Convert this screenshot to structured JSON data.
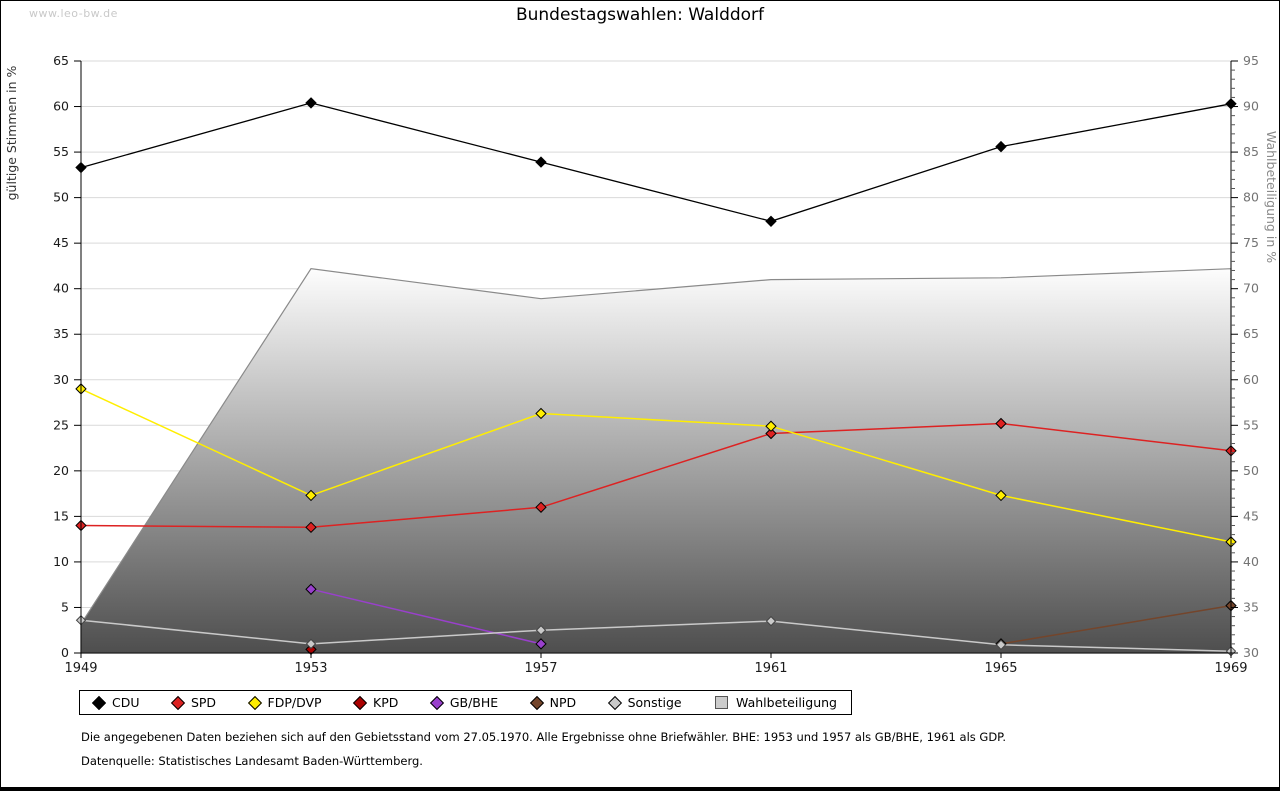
{
  "watermark": "www.leo-bw.de",
  "title": "Bundestagswahlen: Walddorf",
  "chart_data": {
    "type": "line",
    "title": "Bundestagswahlen: Walddorf",
    "x_categories": [
      "1949",
      "1953",
      "1957",
      "1961",
      "1965",
      "1969"
    ],
    "left_axis": {
      "label": "gültige Stimmen in %",
      "min": 0,
      "max": 65,
      "step": 5
    },
    "right_axis": {
      "label": "Wahlbeteiligung in %",
      "min": 30,
      "max": 95,
      "step": 5,
      "minor_step": 1
    },
    "grid": "horizontal-major",
    "legend_position": "bottom",
    "series": [
      {
        "name": "CDU",
        "type": "line",
        "axis": "left",
        "color": "#000000",
        "values": [
          53.3,
          60.4,
          53.9,
          47.4,
          55.6,
          60.3
        ]
      },
      {
        "name": "SPD",
        "type": "line",
        "axis": "left",
        "color": "#dd2222",
        "values": [
          14.0,
          13.8,
          16.0,
          24.1,
          25.2,
          22.2
        ]
      },
      {
        "name": "FDP/DVP",
        "type": "line",
        "axis": "left",
        "color": "#ffee00",
        "values": [
          29.0,
          17.3,
          26.3,
          24.9,
          17.3,
          12.2
        ]
      },
      {
        "name": "KPD",
        "type": "line",
        "axis": "left",
        "color": "#aa0000",
        "values": [
          null,
          0.4,
          null,
          null,
          null,
          null
        ]
      },
      {
        "name": "GB/BHE",
        "type": "line",
        "axis": "left",
        "color": "#9940cc",
        "values": [
          null,
          7.0,
          1.0,
          null,
          null,
          null
        ]
      },
      {
        "name": "NPD",
        "type": "line",
        "axis": "left",
        "color": "#74452b",
        "values": [
          null,
          null,
          null,
          null,
          1.0,
          5.2
        ]
      },
      {
        "name": "Sonstige",
        "type": "line",
        "axis": "left",
        "color": "#c9c9c9",
        "values": [
          3.6,
          1.0,
          2.5,
          3.5,
          0.9,
          0.2
        ]
      },
      {
        "name": "Wahlbeteiligung",
        "type": "area",
        "axis": "right",
        "color": "#8a8a8a",
        "fill_top": "#fdfdfd",
        "fill_bottom": "#4e4e4e",
        "values": [
          33.2,
          72.2,
          68.9,
          71.0,
          71.2,
          72.2
        ]
      }
    ]
  },
  "footnotes": {
    "line1": "Die angegebenen Daten beziehen sich auf den Gebietsstand vom 27.05.1970. Alle Ergebnisse ohne Briefwähler. BHE: 1953 und 1957 als GB/BHE, 1961 als GDP.",
    "line2": "Datenquelle: Statistisches Landesamt Baden-Württemberg."
  }
}
